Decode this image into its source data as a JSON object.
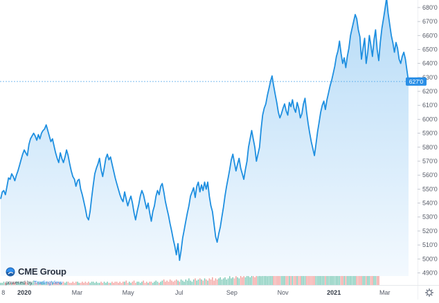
{
  "branding": {
    "name": "CME Group",
    "powered_prefix": "powered by ",
    "powered_brand": "TradingView",
    "logo_icon": "cme-globe-icon"
  },
  "icons": {
    "settings": "gear-icon"
  },
  "chart_data": {
    "type": "area",
    "price_axis": {
      "ticks": [
        "680'0",
        "670'0",
        "660'0",
        "650'0",
        "640'0",
        "630'0",
        "620'0",
        "610'0",
        "600'0",
        "590'0",
        "580'0",
        "570'0",
        "560'0",
        "550'0",
        "540'0",
        "530'0",
        "520'0",
        "510'0",
        "500'0",
        "490'0"
      ],
      "min": 480,
      "max": 687
    },
    "last_price": {
      "label": "627'0",
      "value": 627
    },
    "time_axis": {
      "ticks": [
        "8",
        "2020",
        "Mar",
        "May",
        "Jul",
        "Sep",
        "Nov",
        "2021",
        "Mar"
      ],
      "year_ticks": [
        "2020",
        "2021"
      ],
      "positions": [
        0.5,
        13,
        42,
        70,
        98,
        127,
        155,
        183,
        211
      ],
      "span_weeks": 224
    },
    "series": [
      {
        "values": [
          543,
          548,
          549,
          546,
          552,
          558,
          557,
          561,
          559,
          556,
          560,
          563,
          567,
          571,
          575,
          578,
          576,
          574,
          582,
          586,
          588,
          590,
          588,
          585,
          589,
          586,
          590,
          592,
          593,
          596,
          592,
          588,
          584,
          586,
          581,
          576,
          572,
          569,
          576,
          572,
          569,
          573,
          578,
          574,
          568,
          563,
          559,
          557,
          552,
          556,
          557,
          550,
          546,
          541,
          536,
          530,
          528,
          534,
          544,
          553,
          561,
          565,
          568,
          572,
          564,
          559,
          565,
          572,
          575,
          571,
          573,
          568,
          563,
          558,
          554,
          550,
          546,
          543,
          541,
          548,
          543,
          538,
          542,
          545,
          540,
          533,
          528,
          534,
          539,
          545,
          549,
          546,
          541,
          536,
          540,
          533,
          527,
          534,
          538,
          545,
          549,
          546,
          552,
          554,
          548,
          541,
          536,
          531,
          525,
          520,
          514,
          509,
          503,
          511,
          499,
          506,
          515,
          521,
          527,
          533,
          538,
          545,
          548,
          551,
          544,
          552,
          555,
          548,
          553,
          549,
          555,
          550,
          555,
          545,
          538,
          534,
          525,
          516,
          512,
          518,
          523,
          530,
          537,
          545,
          552,
          558,
          564,
          571,
          575,
          569,
          563,
          568,
          572,
          565,
          561,
          557,
          564,
          570,
          580,
          586,
          592,
          586,
          580,
          570,
          575,
          580,
          593,
          603,
          608,
          611,
          617,
          622,
          627,
          631,
          624,
          618,
          612,
          605,
          601,
          604,
          608,
          611,
          606,
          603,
          612,
          609,
          614,
          608,
          605,
          612,
          608,
          601,
          604,
          611,
          615,
          605,
          597,
          590,
          584,
          579,
          574,
          582,
          591,
          598,
          605,
          610,
          613,
          607,
          614,
          619,
          624,
          628,
          633,
          638,
          645,
          649,
          656,
          647,
          640,
          644,
          637,
          645,
          651,
          660,
          665,
          670,
          675,
          672,
          664,
          659,
          643,
          651,
          658,
          640,
          648,
          660,
          653,
          645,
          657,
          664,
          650,
          642,
          655,
          665,
          672,
          679,
          687,
          676,
          668,
          660,
          655,
          648,
          655,
          651,
          643,
          640,
          645,
          648,
          643,
          635,
          627
        ]
      },
      {
        "name": "volume",
        "values": [
          2,
          2,
          3,
          2,
          2,
          3,
          2,
          2,
          3,
          2,
          3,
          3,
          2,
          3,
          3,
          2,
          3,
          2,
          3,
          3,
          2,
          4,
          3,
          2,
          3,
          2,
          3,
          3,
          2,
          3,
          3,
          2,
          3,
          3,
          2,
          3,
          2,
          3,
          3,
          2,
          3,
          2,
          3,
          3,
          2,
          2,
          3,
          2,
          3,
          3,
          2,
          2,
          3,
          2,
          3,
          2,
          3,
          2,
          3,
          3,
          2,
          3,
          2,
          2,
          3,
          2,
          3,
          2,
          3,
          2,
          2,
          3,
          2,
          3,
          3,
          2,
          3,
          2,
          3,
          3,
          4,
          2,
          3,
          2,
          3,
          4,
          2,
          3,
          3,
          2,
          3,
          4,
          2,
          3,
          2,
          3,
          3,
          2,
          3,
          4,
          3,
          2,
          3,
          4,
          5,
          3,
          4,
          3,
          5,
          4,
          3,
          4,
          5,
          4,
          3,
          5,
          4,
          3,
          5,
          4,
          6,
          4,
          3,
          5,
          6,
          4,
          5,
          6,
          5,
          4,
          6,
          5,
          4,
          6,
          5,
          7,
          4,
          6,
          5,
          6,
          7,
          5,
          6,
          7,
          5,
          6,
          8,
          6,
          7,
          6,
          8,
          7,
          6,
          9,
          7,
          8,
          7,
          9,
          8,
          7,
          9,
          8,
          7,
          10,
          8,
          9,
          8,
          10,
          9,
          11,
          8,
          10,
          12,
          9,
          11,
          10,
          13,
          9,
          12,
          11,
          10,
          14,
          12,
          11,
          13,
          15,
          12,
          14,
          13,
          16,
          12,
          15,
          14,
          17,
          15,
          18,
          16,
          14,
          19,
          17,
          16,
          20,
          18,
          22,
          19,
          24,
          21,
          26,
          30,
          28,
          38,
          46,
          34,
          50,
          42,
          60,
          48,
          70,
          55,
          45,
          62,
          52,
          40,
          58,
          66,
          44,
          54,
          48,
          36,
          50,
          42,
          56,
          38,
          46,
          34,
          42,
          30,
          38,
          26,
          34,
          30,
          40
        ]
      }
    ],
    "volume_colors": {
      "up": "#7cc9b7",
      "down": "#f2a2a0"
    },
    "colors": {
      "line": "#1e8fe0",
      "area_top": "#b6dbf7",
      "area_bottom": "#f3f9fe",
      "last_price_line": "#4ba3ea",
      "last_price_badge": "#2b8fe6"
    },
    "grid": false,
    "legend": "none"
  }
}
